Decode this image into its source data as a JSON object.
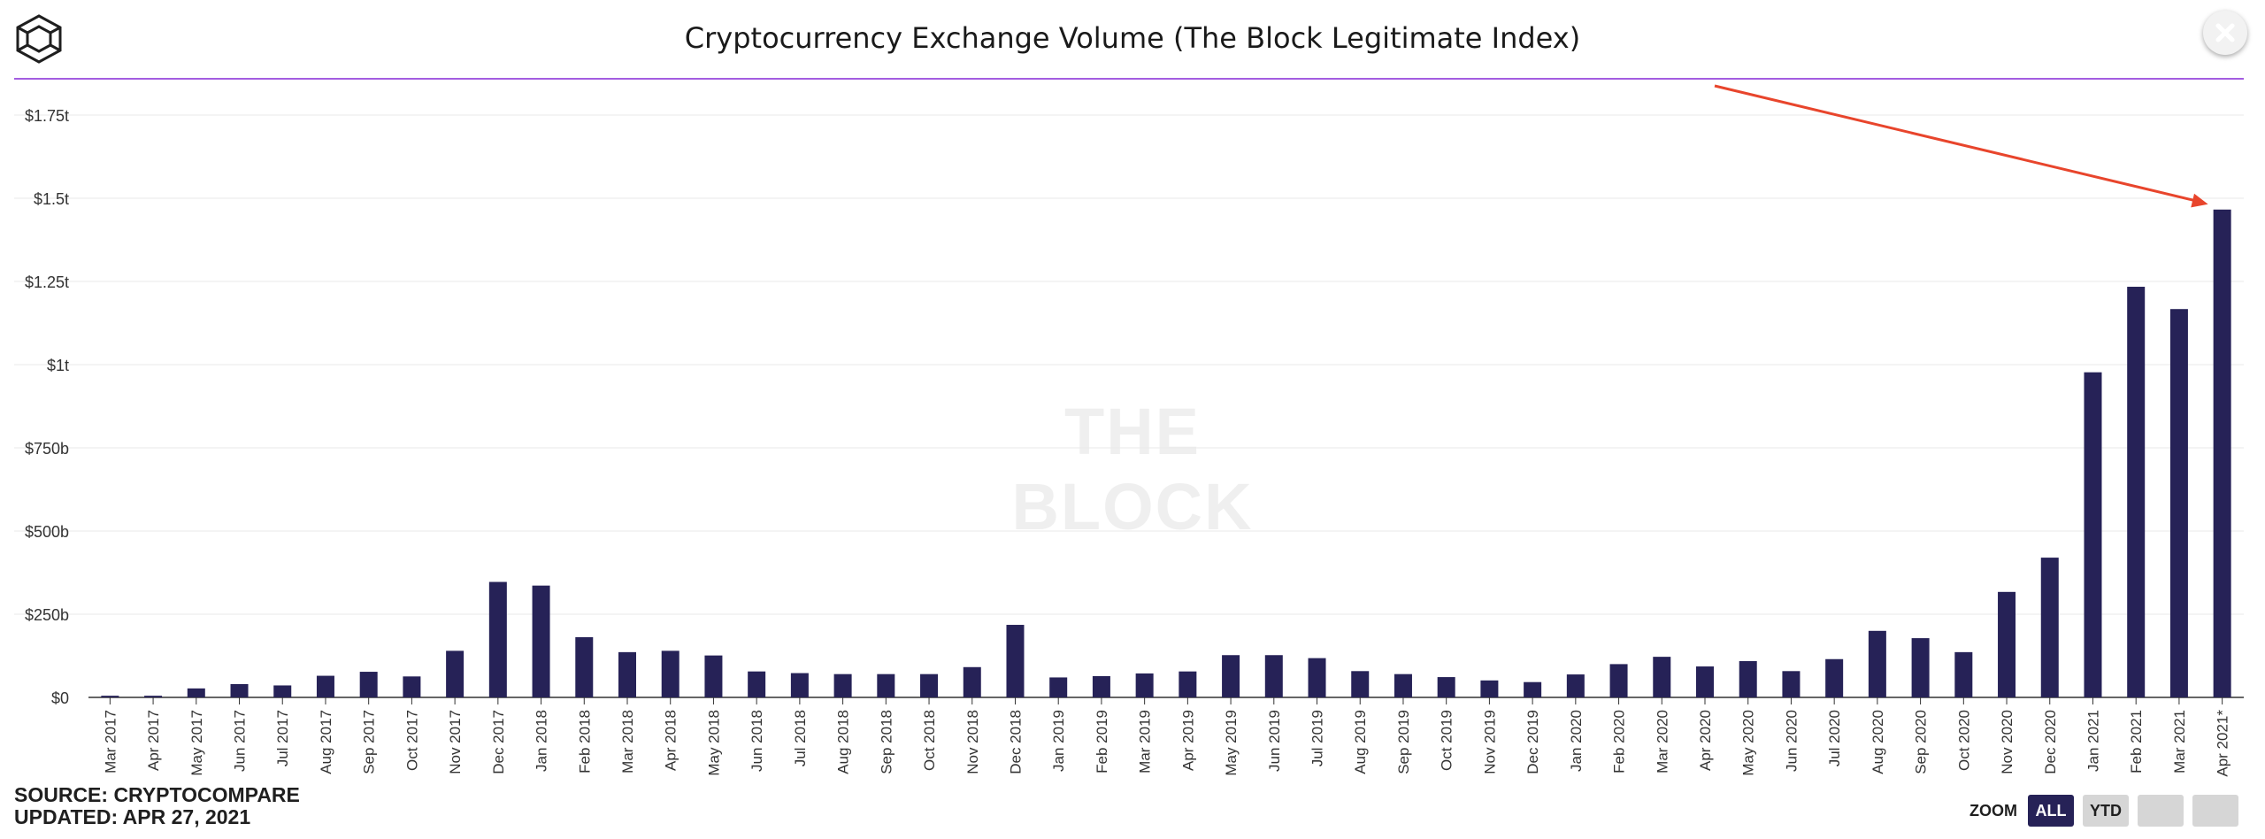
{
  "header": {
    "title": "Cryptocurrency Exchange Volume (The Block Legitimate Index)",
    "logo_icon": "cube-logo-icon",
    "close_icon": "close-icon",
    "rule_color": "#a35de0"
  },
  "watermark": "THE BLOCK",
  "footer": {
    "source": "SOURCE: CRYPTOCOMPARE",
    "updated": "UPDATED: APR 27, 2021"
  },
  "zoom": {
    "label": "ZOOM",
    "buttons": [
      "ALL",
      "YTD",
      "",
      ""
    ],
    "active": "ALL"
  },
  "colors": {
    "bar": "#262257",
    "arrow": "#e8452c",
    "grid": "#eaeaea"
  },
  "chart_data": {
    "type": "bar",
    "title": "Cryptocurrency Exchange Volume (The Block Legitimate Index)",
    "xlabel": "",
    "ylabel": "",
    "ylim": [
      0,
      1.75
    ],
    "unit": "trillion USD",
    "y_ticks": [
      0,
      0.25,
      0.5,
      0.75,
      1,
      1.25,
      1.5,
      1.75
    ],
    "y_tick_labels": [
      "$0",
      "$250b",
      "$500b",
      "$750b",
      "$1t",
      "$1.25t",
      "$1.5t",
      "$1.75t"
    ],
    "grid": true,
    "legend": "none",
    "categories": [
      "Mar 2017",
      "Apr 2017",
      "May 2017",
      "Jun 2017",
      "Jul 2017",
      "Aug 2017",
      "Sep 2017",
      "Oct 2017",
      "Nov 2017",
      "Dec 2017",
      "Jan 2018",
      "Feb 2018",
      "Mar 2018",
      "Apr 2018",
      "May 2018",
      "Jun 2018",
      "Jul 2018",
      "Aug 2018",
      "Sep 2018",
      "Oct 2018",
      "Nov 2018",
      "Dec 2018",
      "Jan 2019",
      "Feb 2019",
      "Mar 2019",
      "Apr 2019",
      "May 2019",
      "Jun 2019",
      "Jul 2019",
      "Aug 2019",
      "Sep 2019",
      "Oct 2019",
      "Nov 2019",
      "Dec 2019",
      "Jan 2020",
      "Feb 2020",
      "Mar 2020",
      "Apr 2020",
      "May 2020",
      "Jun 2020",
      "Jul 2020",
      "Aug 2020",
      "Sep 2020",
      "Oct 2020",
      "Nov 2020",
      "Dec 2020",
      "Jan 2021",
      "Feb 2021",
      "Mar 2021",
      "Apr 2021*"
    ],
    "values": [
      0.005,
      0.005,
      0.027,
      0.04,
      0.036,
      0.065,
      0.077,
      0.063,
      0.14,
      0.347,
      0.336,
      0.181,
      0.136,
      0.14,
      0.126,
      0.078,
      0.073,
      0.07,
      0.07,
      0.07,
      0.091,
      0.218,
      0.06,
      0.064,
      0.072,
      0.078,
      0.127,
      0.127,
      0.118,
      0.079,
      0.07,
      0.061,
      0.051,
      0.046,
      0.069,
      0.1,
      0.122,
      0.093,
      0.109,
      0.079,
      0.115,
      0.2,
      0.178,
      0.136,
      0.317,
      0.42,
      0.977,
      1.234,
      1.167,
      1.466
    ],
    "annotations": [
      {
        "type": "arrow",
        "points_to": "Apr 2021*"
      }
    ]
  }
}
